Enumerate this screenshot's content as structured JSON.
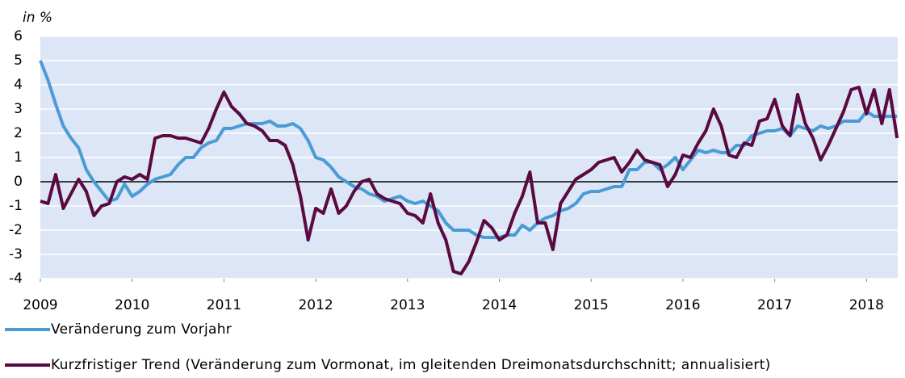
{
  "chart_data": {
    "type": "line",
    "y_label": "in %",
    "x": [
      2009,
      2009.083,
      2009.167,
      2009.25,
      2009.333,
      2009.417,
      2009.5,
      2009.583,
      2009.667,
      2009.75,
      2009.833,
      2009.917,
      2010,
      2010.083,
      2010.167,
      2010.25,
      2010.333,
      2010.417,
      2010.5,
      2010.583,
      2010.667,
      2010.75,
      2010.833,
      2010.917,
      2011,
      2011.083,
      2011.167,
      2011.25,
      2011.333,
      2011.417,
      2011.5,
      2011.583,
      2011.667,
      2011.75,
      2011.833,
      2011.917,
      2012,
      2012.083,
      2012.167,
      2012.25,
      2012.333,
      2012.417,
      2012.5,
      2012.583,
      2012.667,
      2012.75,
      2012.833,
      2012.917,
      2013,
      2013.083,
      2013.167,
      2013.25,
      2013.333,
      2013.417,
      2013.5,
      2013.583,
      2013.667,
      2013.75,
      2013.833,
      2013.917,
      2014,
      2014.083,
      2014.167,
      2014.25,
      2014.333,
      2014.417,
      2014.5,
      2014.583,
      2014.667,
      2014.75,
      2014.833,
      2014.917,
      2015,
      2015.083,
      2015.167,
      2015.25,
      2015.333,
      2015.417,
      2015.5,
      2015.583,
      2015.667,
      2015.75,
      2015.833,
      2015.917,
      2016,
      2016.083,
      2016.167,
      2016.25,
      2016.333,
      2016.417,
      2016.5,
      2016.583,
      2016.667,
      2016.75,
      2016.833,
      2016.917,
      2017,
      2017.083,
      2017.167,
      2017.25,
      2017.333,
      2017.417,
      2017.5,
      2017.583,
      2017.667,
      2017.75,
      2017.833,
      2017.917,
      2018,
      2018.083,
      2018.167,
      2018.25,
      2018.333
    ],
    "series": [
      {
        "name": "Veränderung zum Vorjahr",
        "color": "#4a9bd6",
        "values": [
          5.0,
          4.2,
          3.2,
          2.3,
          1.8,
          1.4,
          0.5,
          0.0,
          -0.4,
          -0.8,
          -0.7,
          -0.1,
          -0.6,
          -0.4,
          -0.1,
          0.1,
          0.2,
          0.3,
          0.7,
          1.0,
          1.0,
          1.4,
          1.6,
          1.7,
          2.2,
          2.2,
          2.3,
          2.4,
          2.4,
          2.4,
          2.5,
          2.3,
          2.3,
          2.4,
          2.2,
          1.7,
          1.0,
          0.9,
          0.6,
          0.2,
          0.0,
          -0.2,
          -0.3,
          -0.5,
          -0.6,
          -0.8,
          -0.7,
          -0.6,
          -0.8,
          -0.9,
          -0.8,
          -1.0,
          -1.2,
          -1.7,
          -2.0,
          -2.0,
          -2.0,
          -2.2,
          -2.3,
          -2.3,
          -2.3,
          -2.2,
          -2.2,
          -1.8,
          -2.0,
          -1.7,
          -1.5,
          -1.4,
          -1.2,
          -1.1,
          -0.9,
          -0.5,
          -0.4,
          -0.4,
          -0.3,
          -0.2,
          -0.2,
          0.5,
          0.5,
          0.8,
          0.8,
          0.5,
          0.7,
          1.0,
          0.5,
          0.9,
          1.3,
          1.2,
          1.3,
          1.2,
          1.2,
          1.5,
          1.5,
          1.9,
          2.0,
          2.1,
          2.1,
          2.2,
          1.9,
          2.3,
          2.2,
          2.1,
          2.3,
          2.2,
          2.3,
          2.5,
          2.5,
          2.5,
          2.9,
          2.7,
          2.7,
          2.7,
          2.7
        ]
      },
      {
        "name": "Kurzfristiger Trend (Veränderung zum Vormonat, im gleitenden Dreimonatsdurchschnitt; annualisiert)",
        "color": "#5a0a40",
        "values": [
          -0.8,
          -0.9,
          0.3,
          -1.1,
          -0.5,
          0.1,
          -0.4,
          -1.4,
          -1.0,
          -0.9,
          0.0,
          0.2,
          0.1,
          0.3,
          0.1,
          1.8,
          1.9,
          1.9,
          1.8,
          1.8,
          1.7,
          1.6,
          2.2,
          3.0,
          3.7,
          3.1,
          2.8,
          2.4,
          2.3,
          2.1,
          1.7,
          1.7,
          1.5,
          0.7,
          -0.6,
          -2.4,
          -1.1,
          -1.3,
          -0.3,
          -1.3,
          -1.0,
          -0.4,
          0.0,
          0.1,
          -0.5,
          -0.7,
          -0.8,
          -0.9,
          -1.3,
          -1.4,
          -1.7,
          -0.5,
          -1.7,
          -2.4,
          -3.7,
          -3.8,
          -3.3,
          -2.5,
          -1.6,
          -1.9,
          -2.4,
          -2.2,
          -1.3,
          -0.6,
          0.4,
          -1.7,
          -1.7,
          -2.8,
          -0.9,
          -0.4,
          0.1,
          0.3,
          0.5,
          0.8,
          0.9,
          1.0,
          0.4,
          0.8,
          1.3,
          0.9,
          0.8,
          0.7,
          -0.2,
          0.3,
          1.1,
          1.0,
          1.6,
          2.1,
          3.0,
          2.3,
          1.1,
          1.0,
          1.6,
          1.5,
          2.5,
          2.6,
          3.4,
          2.3,
          1.9,
          3.6,
          2.4,
          1.8,
          0.9,
          1.5,
          2.2,
          2.9,
          3.8,
          3.9,
          2.8,
          3.8,
          2.4,
          3.8,
          1.8
        ]
      }
    ],
    "xlim": [
      2009,
      2018.34
    ],
    "xticks": [
      2009,
      2010,
      2011,
      2012,
      2013,
      2014,
      2015,
      2016,
      2017,
      2018
    ],
    "ylim": [
      -4,
      6
    ],
    "yticks": [
      -4,
      -3,
      -2,
      -1,
      0,
      1,
      2,
      3,
      4,
      5,
      6
    ],
    "grid": true,
    "background": "#dce6f6"
  }
}
